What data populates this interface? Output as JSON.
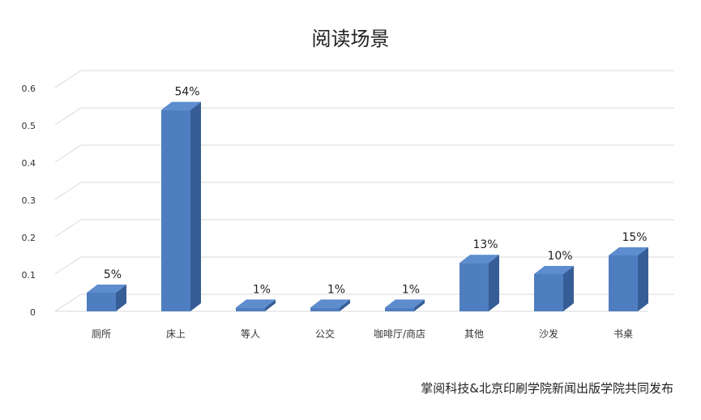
{
  "footer": "掌阅科技&北京印刷学院新闻出版学院共同发布",
  "chart_data": {
    "type": "bar",
    "title": "阅读场景",
    "categories": [
      "厕所",
      "床上",
      "等人",
      "公交",
      "咖啡厅/商店",
      "其他",
      "沙发",
      "书桌"
    ],
    "values": [
      0.05,
      0.54,
      0.01,
      0.01,
      0.01,
      0.13,
      0.1,
      0.15
    ],
    "data_labels": [
      "5%",
      "54%",
      "1%",
      "1%",
      "1%",
      "13%",
      "10%",
      "15%"
    ],
    "y_ticks": [
      "0",
      "0.1",
      "0.2",
      "0.3",
      "0.4",
      "0.5",
      "0.6"
    ],
    "ylim": [
      0,
      0.6
    ],
    "grid": true,
    "bar_color": "#4F7EC0"
  }
}
